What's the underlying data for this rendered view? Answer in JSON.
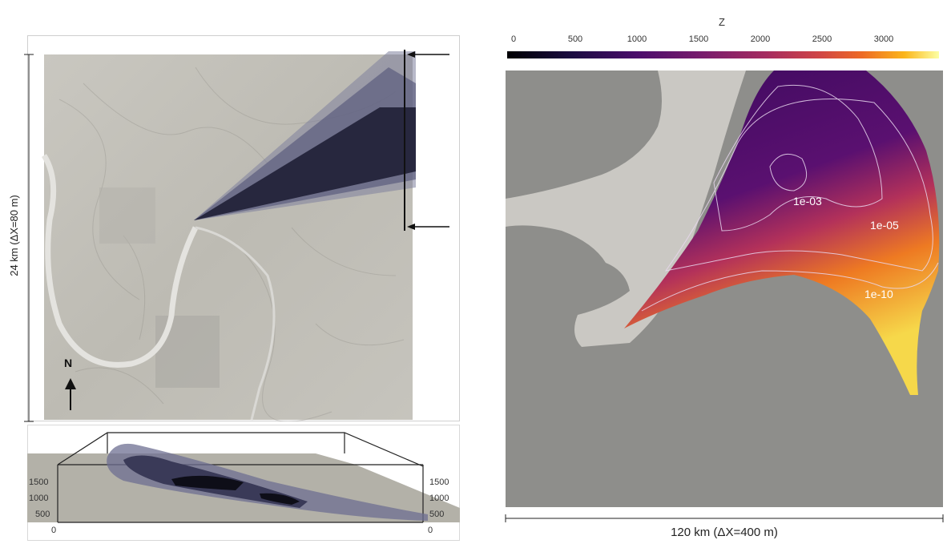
{
  "left_panel": {
    "vertical_scale_label": "24 km (ΔX=80 m)",
    "north_label": "N"
  },
  "bottom_panel": {
    "left_ticks": [
      "1500",
      "1000",
      "500",
      "0"
    ],
    "right_ticks": [
      "1500",
      "1000",
      "500",
      "0"
    ]
  },
  "right_panel": {
    "colorbar_title": "Z",
    "colorbar_ticks": [
      "0",
      "500",
      "1000",
      "1500",
      "2000",
      "2500",
      "3000"
    ],
    "contour_labels": [
      "1e-03",
      "1e-05",
      "1e-10"
    ],
    "scale_label": "120 km (ΔX=400 m)"
  }
}
